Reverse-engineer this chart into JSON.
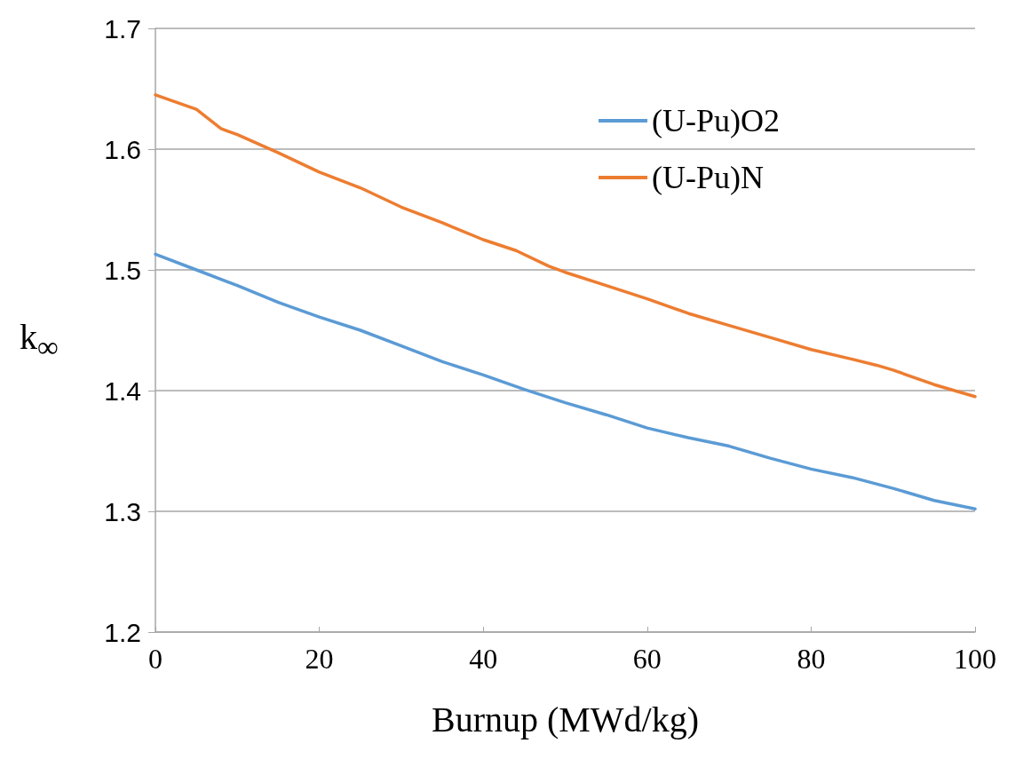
{
  "chart_data": {
    "type": "line",
    "xlabel": "Burnup (MWd/kg)",
    "ylabel": "k$_{∞}$",
    "xlim": [
      0,
      100
    ],
    "xticks": [
      0,
      20,
      40,
      60,
      80,
      100
    ],
    "ylim": [
      1.2,
      1.7
    ],
    "yticks": [
      1.2,
      1.3,
      1.4,
      1.5,
      1.6,
      1.7
    ],
    "grid": "y",
    "legend": "top right",
    "marker": "none",
    "line_style": "solid",
    "x": [
      0,
      5,
      8,
      10,
      15,
      20,
      25,
      30,
      35,
      40,
      44,
      48,
      50,
      55,
      60,
      65,
      70,
      75,
      80,
      85,
      88,
      90,
      95,
      100
    ],
    "series": [
      {
        "name": "(U-Pu)O2",
        "color": "#5b9bd5",
        "x": [
          0,
          5,
          10,
          15,
          20,
          25,
          30,
          35,
          40,
          45,
          50,
          55,
          60,
          65,
          70,
          75,
          80,
          85,
          90,
          95,
          100
        ],
        "values": [
          1.513,
          1.5,
          1.487,
          1.473,
          1.461,
          1.45,
          1.437,
          1.424,
          1.413,
          1.401,
          1.39,
          1.38,
          1.369,
          1.361,
          1.354,
          1.344,
          1.335,
          1.328,
          1.319,
          1.309,
          1.302
        ]
      },
      {
        "name": "(U-Pu)N",
        "color": "#ed7d31",
        "values": [
          1.645,
          1.633,
          1.617,
          1.612,
          1.597,
          1.581,
          1.568,
          1.552,
          1.539,
          1.525,
          1.516,
          1.503,
          1.498,
          1.487,
          1.476,
          1.464,
          1.454,
          1.444,
          1.434,
          1.426,
          1.421,
          1.417,
          1.405,
          1.395
        ]
      }
    ]
  }
}
